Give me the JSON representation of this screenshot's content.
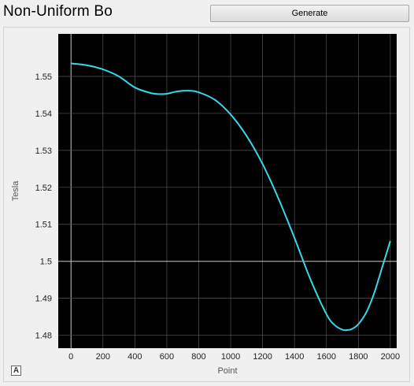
{
  "app": {
    "title": "Non-Uniform Bo"
  },
  "toolbar": {
    "generate_label": "Generate"
  },
  "axis_button": {
    "label": "A"
  },
  "chart_data": {
    "type": "line",
    "xlabel": "Point",
    "ylabel": "Tesla",
    "xlim": [
      -80,
      2040
    ],
    "ylim": [
      1.4765,
      1.5615
    ],
    "x_ticks": [
      0,
      200,
      400,
      600,
      800,
      1000,
      1200,
      1400,
      1600,
      1800,
      2000
    ],
    "y_ticks": [
      1.48,
      1.49,
      1.5,
      1.51,
      1.52,
      1.53,
      1.54,
      1.55
    ],
    "x_tick_labels": [
      "0",
      "200",
      "400",
      "600",
      "800",
      "1000",
      "1200",
      "1400",
      "1600",
      "1800",
      "2000"
    ],
    "y_tick_labels": [
      "1.48",
      "1.49",
      "1.5",
      "1.51",
      "1.52",
      "1.53",
      "1.54",
      "1.55"
    ],
    "grid": true,
    "background": "#000000",
    "line_color": "#35d8e8",
    "series": [
      {
        "x": [
          0,
          100,
          200,
          300,
          400,
          500,
          560,
          600,
          650,
          700,
          750,
          800,
          900,
          1000,
          1100,
          1200,
          1300,
          1400,
          1500,
          1600,
          1650,
          1700,
          1730,
          1760,
          1800,
          1850,
          1900,
          1950,
          2000
        ],
        "values": [
          1.5535,
          1.553,
          1.5519,
          1.55,
          1.547,
          1.5455,
          1.5452,
          1.5453,
          1.5458,
          1.5461,
          1.5461,
          1.5457,
          1.5437,
          1.5397,
          1.5339,
          1.5263,
          1.5169,
          1.5063,
          1.4951,
          1.4857,
          1.4828,
          1.4815,
          1.4814,
          1.4817,
          1.483,
          1.4862,
          1.4915,
          1.4985,
          1.5055
        ]
      }
    ]
  }
}
